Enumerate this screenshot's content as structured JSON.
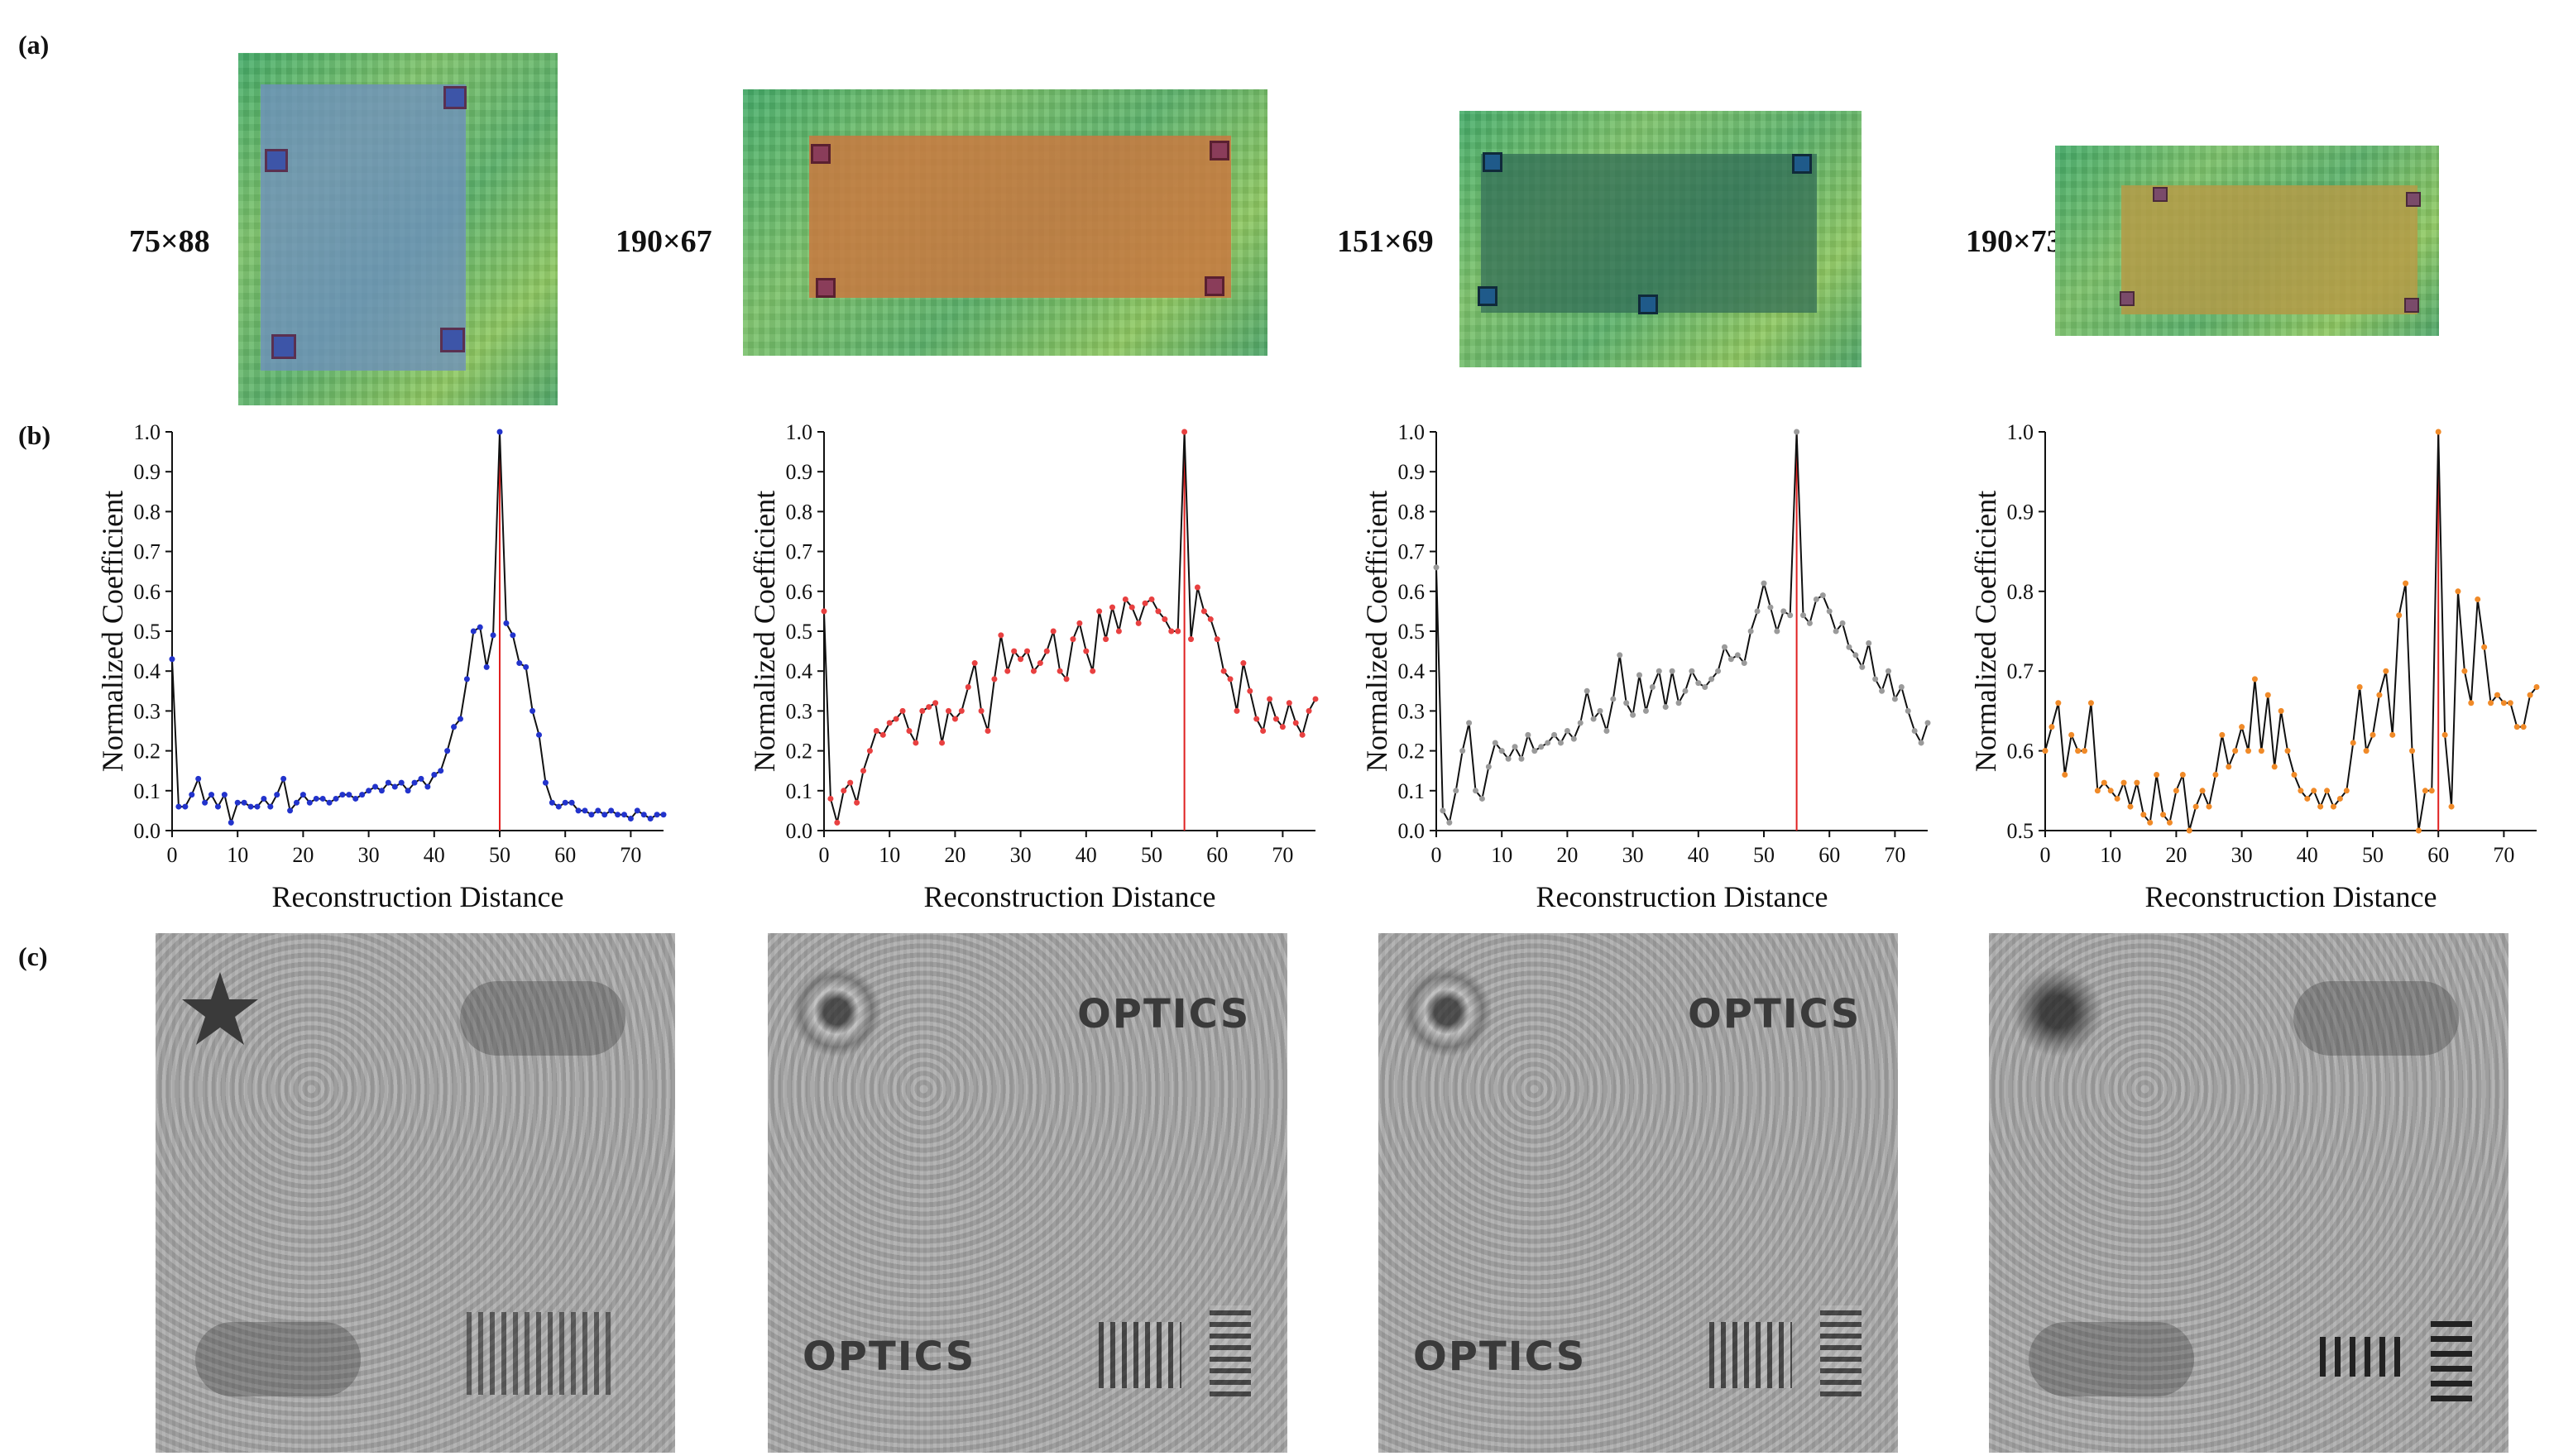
{
  "panel_labels": {
    "a": "(a)",
    "b": "(b)",
    "c": "(c)"
  },
  "holograms": [
    {
      "size_label": "75×88",
      "overlay_color": "#6f8fbf",
      "marker_color": "#3d55a8"
    },
    {
      "size_label": "190×67",
      "overlay_color": "#c9783f",
      "marker_color": "#8a3d5a"
    },
    {
      "size_label": "151×69",
      "overlay_color": "#2f6a55",
      "marker_color": "#1f5a8a"
    },
    {
      "size_label": "190×73",
      "overlay_color": "#b79a45",
      "marker_color": "#7a4b6a"
    }
  ],
  "chart_data": [
    {
      "type": "line",
      "xlabel": "Reconstruction Distance",
      "ylabel": "Normalized Coefficient",
      "xlim": [
        0,
        75
      ],
      "ylim": [
        0,
        1.0
      ],
      "xticks": [
        0,
        10,
        20,
        30,
        40,
        50,
        60,
        70
      ],
      "yticks": [
        0.0,
        0.1,
        0.2,
        0.3,
        0.4,
        0.5,
        0.6,
        0.7,
        0.8,
        0.9,
        1.0
      ],
      "peak_x": 50,
      "marker_color": "#2233cc",
      "x": [
        0,
        1,
        2,
        3,
        4,
        5,
        6,
        7,
        8,
        9,
        10,
        11,
        12,
        13,
        14,
        15,
        16,
        17,
        18,
        19,
        20,
        21,
        22,
        23,
        24,
        25,
        26,
        27,
        28,
        29,
        30,
        31,
        32,
        33,
        34,
        35,
        36,
        37,
        38,
        39,
        40,
        41,
        42,
        43,
        44,
        45,
        46,
        47,
        48,
        49,
        50,
        51,
        52,
        53,
        54,
        55,
        56,
        57,
        58,
        59,
        60,
        61,
        62,
        63,
        64,
        65,
        66,
        67,
        68,
        69,
        70,
        71,
        72,
        73,
        74,
        75
      ],
      "y": [
        0.43,
        0.06,
        0.06,
        0.09,
        0.13,
        0.07,
        0.09,
        0.06,
        0.09,
        0.02,
        0.07,
        0.07,
        0.06,
        0.06,
        0.08,
        0.06,
        0.09,
        0.13,
        0.05,
        0.07,
        0.09,
        0.07,
        0.08,
        0.08,
        0.07,
        0.08,
        0.09,
        0.09,
        0.08,
        0.09,
        0.1,
        0.11,
        0.1,
        0.12,
        0.11,
        0.12,
        0.1,
        0.12,
        0.13,
        0.11,
        0.14,
        0.15,
        0.2,
        0.26,
        0.28,
        0.38,
        0.5,
        0.51,
        0.41,
        0.49,
        1.0,
        0.52,
        0.49,
        0.42,
        0.41,
        0.3,
        0.24,
        0.12,
        0.07,
        0.06,
        0.07,
        0.07,
        0.05,
        0.05,
        0.04,
        0.05,
        0.04,
        0.05,
        0.04,
        0.04,
        0.03,
        0.05,
        0.04,
        0.03,
        0.04,
        0.04
      ]
    },
    {
      "type": "line",
      "xlabel": "Reconstruction Distance",
      "ylabel": "Normalized Coefficient",
      "xlim": [
        0,
        75
      ],
      "ylim": [
        0,
        1.0
      ],
      "xticks": [
        0,
        10,
        20,
        30,
        40,
        50,
        60,
        70
      ],
      "yticks": [
        0.0,
        0.1,
        0.2,
        0.3,
        0.4,
        0.5,
        0.6,
        0.7,
        0.8,
        0.9,
        1.0
      ],
      "peak_x": 55,
      "marker_color": "#e84040",
      "x": [
        0,
        1,
        2,
        3,
        4,
        5,
        6,
        7,
        8,
        9,
        10,
        11,
        12,
        13,
        14,
        15,
        16,
        17,
        18,
        19,
        20,
        21,
        22,
        23,
        24,
        25,
        26,
        27,
        28,
        29,
        30,
        31,
        32,
        33,
        34,
        35,
        36,
        37,
        38,
        39,
        40,
        41,
        42,
        43,
        44,
        45,
        46,
        47,
        48,
        49,
        50,
        51,
        52,
        53,
        54,
        55,
        56,
        57,
        58,
        59,
        60,
        61,
        62,
        63,
        64,
        65,
        66,
        67,
        68,
        69,
        70,
        71,
        72,
        73,
        74,
        75
      ],
      "y": [
        0.55,
        0.08,
        0.02,
        0.1,
        0.12,
        0.07,
        0.15,
        0.2,
        0.25,
        0.24,
        0.27,
        0.28,
        0.3,
        0.25,
        0.22,
        0.3,
        0.31,
        0.32,
        0.22,
        0.3,
        0.28,
        0.3,
        0.36,
        0.42,
        0.3,
        0.25,
        0.38,
        0.49,
        0.4,
        0.45,
        0.43,
        0.45,
        0.4,
        0.42,
        0.45,
        0.5,
        0.4,
        0.38,
        0.48,
        0.52,
        0.45,
        0.4,
        0.55,
        0.48,
        0.56,
        0.5,
        0.58,
        0.56,
        0.52,
        0.57,
        0.58,
        0.55,
        0.53,
        0.5,
        0.5,
        1.0,
        0.48,
        0.61,
        0.55,
        0.53,
        0.48,
        0.4,
        0.38,
        0.3,
        0.42,
        0.35,
        0.28,
        0.25,
        0.33,
        0.28,
        0.26,
        0.32,
        0.27,
        0.24,
        0.3,
        0.33
      ]
    },
    {
      "type": "line",
      "xlabel": "Reconstruction Distance",
      "ylabel": "Normalized Coefficient",
      "xlim": [
        0,
        75
      ],
      "ylim": [
        0,
        1.0
      ],
      "xticks": [
        0,
        10,
        20,
        30,
        40,
        50,
        60,
        70
      ],
      "yticks": [
        0.0,
        0.1,
        0.2,
        0.3,
        0.4,
        0.5,
        0.6,
        0.7,
        0.8,
        0.9,
        1.0
      ],
      "peak_x": 55,
      "marker_color": "#9a9a9a",
      "x": [
        0,
        1,
        2,
        3,
        4,
        5,
        6,
        7,
        8,
        9,
        10,
        11,
        12,
        13,
        14,
        15,
        16,
        17,
        18,
        19,
        20,
        21,
        22,
        23,
        24,
        25,
        26,
        27,
        28,
        29,
        30,
        31,
        32,
        33,
        34,
        35,
        36,
        37,
        38,
        39,
        40,
        41,
        42,
        43,
        44,
        45,
        46,
        47,
        48,
        49,
        50,
        51,
        52,
        53,
        54,
        55,
        56,
        57,
        58,
        59,
        60,
        61,
        62,
        63,
        64,
        65,
        66,
        67,
        68,
        69,
        70,
        71,
        72,
        73,
        74,
        75
      ],
      "y": [
        0.66,
        0.05,
        0.02,
        0.1,
        0.2,
        0.27,
        0.1,
        0.08,
        0.16,
        0.22,
        0.2,
        0.18,
        0.21,
        0.18,
        0.24,
        0.2,
        0.21,
        0.22,
        0.24,
        0.22,
        0.25,
        0.23,
        0.27,
        0.35,
        0.28,
        0.3,
        0.25,
        0.33,
        0.44,
        0.32,
        0.29,
        0.39,
        0.3,
        0.36,
        0.4,
        0.31,
        0.4,
        0.32,
        0.35,
        0.4,
        0.37,
        0.36,
        0.38,
        0.4,
        0.46,
        0.43,
        0.44,
        0.42,
        0.5,
        0.55,
        0.62,
        0.56,
        0.5,
        0.55,
        0.54,
        1.0,
        0.54,
        0.52,
        0.58,
        0.59,
        0.55,
        0.5,
        0.52,
        0.46,
        0.44,
        0.41,
        0.47,
        0.38,
        0.35,
        0.4,
        0.33,
        0.36,
        0.3,
        0.25,
        0.22,
        0.27
      ]
    },
    {
      "type": "line",
      "xlabel": "Reconstruction Distance",
      "ylabel": "Normalized Coefficient",
      "xlim": [
        0,
        75
      ],
      "ylim": [
        0.5,
        1.0
      ],
      "xticks": [
        0,
        10,
        20,
        30,
        40,
        50,
        60,
        70
      ],
      "yticks": [
        0.5,
        0.6,
        0.7,
        0.8,
        0.9,
        1.0
      ],
      "peak_x": 60,
      "marker_color": "#f08a28",
      "x": [
        0,
        1,
        2,
        3,
        4,
        5,
        6,
        7,
        8,
        9,
        10,
        11,
        12,
        13,
        14,
        15,
        16,
        17,
        18,
        19,
        20,
        21,
        22,
        23,
        24,
        25,
        26,
        27,
        28,
        29,
        30,
        31,
        32,
        33,
        34,
        35,
        36,
        37,
        38,
        39,
        40,
        41,
        42,
        43,
        44,
        45,
        46,
        47,
        48,
        49,
        50,
        51,
        52,
        53,
        54,
        55,
        56,
        57,
        58,
        59,
        60,
        61,
        62,
        63,
        64,
        65,
        66,
        67,
        68,
        69,
        70,
        71,
        72,
        73,
        74,
        75
      ],
      "y": [
        0.6,
        0.63,
        0.66,
        0.57,
        0.62,
        0.6,
        0.6,
        0.66,
        0.55,
        0.56,
        0.55,
        0.54,
        0.56,
        0.53,
        0.56,
        0.52,
        0.51,
        0.57,
        0.52,
        0.51,
        0.55,
        0.57,
        0.5,
        0.53,
        0.55,
        0.53,
        0.57,
        0.62,
        0.58,
        0.6,
        0.63,
        0.6,
        0.69,
        0.6,
        0.67,
        0.58,
        0.65,
        0.6,
        0.57,
        0.55,
        0.54,
        0.55,
        0.53,
        0.55,
        0.53,
        0.54,
        0.55,
        0.61,
        0.68,
        0.6,
        0.62,
        0.67,
        0.7,
        0.62,
        0.77,
        0.81,
        0.6,
        0.5,
        0.55,
        0.55,
        1.0,
        0.62,
        0.53,
        0.8,
        0.7,
        0.66,
        0.79,
        0.73,
        0.66,
        0.67,
        0.66,
        0.66,
        0.63,
        0.63,
        0.67,
        0.68
      ]
    }
  ],
  "reconstructions": [
    {
      "text_objects": []
    },
    {
      "text_objects": [
        "OPTICS",
        "OPTICS"
      ]
    },
    {
      "text_objects": [
        "OPTICS",
        "OPTICS"
      ]
    },
    {
      "text_objects": []
    }
  ]
}
